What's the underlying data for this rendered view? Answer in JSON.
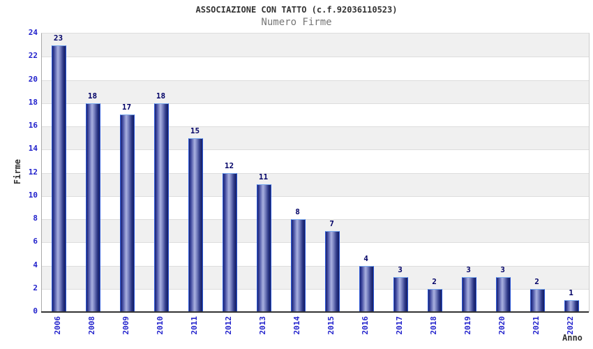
{
  "chart_data": {
    "type": "bar",
    "title": "ASSOCIAZIONE CON TATTO (c.f.92036110523)",
    "subtitle": "Numero Firme",
    "xlabel": "Anno",
    "ylabel": "Firme",
    "categories": [
      "2006",
      "2008",
      "2009",
      "2010",
      "2011",
      "2012",
      "2013",
      "2014",
      "2015",
      "2016",
      "2017",
      "2018",
      "2019",
      "2020",
      "2021",
      "2022"
    ],
    "values": [
      23,
      18,
      17,
      18,
      15,
      12,
      11,
      8,
      7,
      4,
      3,
      2,
      3,
      3,
      2,
      1
    ],
    "ylim": [
      0,
      24
    ],
    "ytick_step": 2,
    "grid": "horizontal-alternating-bands",
    "legend": "none",
    "colors": {
      "title": "#333333",
      "subtitle": "#767676",
      "axis_title": "#333333",
      "tick_label": "#2222cc",
      "value_label": "#000066",
      "band_gray": "#f0f0f0",
      "band_white": "#ffffff",
      "gridline": "#dddddd",
      "axis_line": "#333333",
      "bar_dark": "#1a2470",
      "bar_mid": "#39439a",
      "bar_light": "#aab1e0",
      "bar_shadow": "#131d62",
      "bar_outline": "#2e59d8",
      "bar_top_edge": "#79a9ec"
    }
  }
}
